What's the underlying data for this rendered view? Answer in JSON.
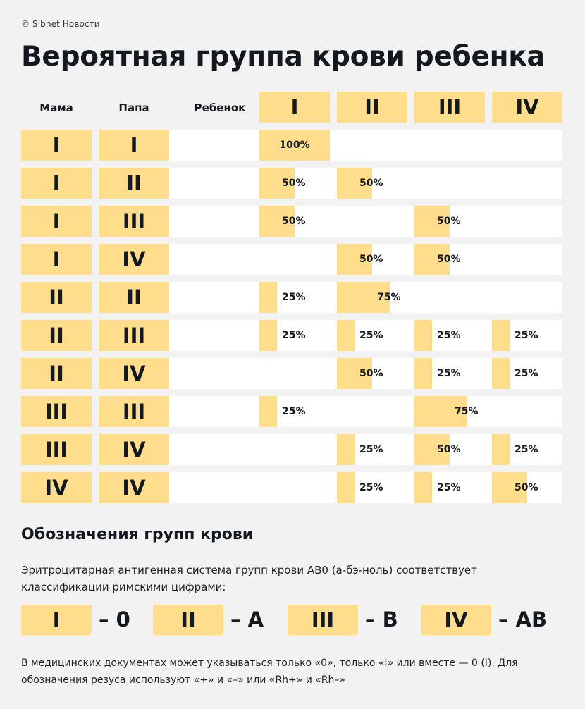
{
  "credit": "© Sibnet Новости",
  "title": "Вероятная группа крови ребенка",
  "headers": {
    "mother": "Мама",
    "father": "Папа",
    "child": "Ребенок"
  },
  "chart_data": {
    "type": "table",
    "title": "Вероятная группа крови ребенка",
    "columns": [
      "Мама",
      "Папа",
      "Ребенок"
    ],
    "child_groups": [
      "I",
      "II",
      "III",
      "IV"
    ],
    "rows": [
      {
        "mother": "I",
        "father": "I",
        "child": [
          100,
          null,
          null,
          null
        ]
      },
      {
        "mother": "I",
        "father": "II",
        "child": [
          50,
          50,
          null,
          null
        ]
      },
      {
        "mother": "I",
        "father": "III",
        "child": [
          50,
          null,
          50,
          null
        ]
      },
      {
        "mother": "I",
        "father": "IV",
        "child": [
          null,
          50,
          50,
          null
        ]
      },
      {
        "mother": "II",
        "father": "II",
        "child": [
          25,
          75,
          null,
          null
        ]
      },
      {
        "mother": "II",
        "father": "III",
        "child": [
          25,
          25,
          25,
          25
        ]
      },
      {
        "mother": "II",
        "father": "IV",
        "child": [
          null,
          50,
          25,
          25
        ]
      },
      {
        "mother": "III",
        "father": "III",
        "child": [
          25,
          null,
          75,
          null
        ]
      },
      {
        "mother": "III",
        "father": "IV",
        "child": [
          null,
          25,
          50,
          25
        ]
      },
      {
        "mother": "IV",
        "father": "IV",
        "child": [
          null,
          25,
          25,
          50
        ]
      }
    ],
    "unit": "%"
  },
  "legend": {
    "title": "Обозначения групп крови",
    "text": "Эритроцитарная антигенная система групп крови AB0 (а-бэ-ноль) соответствует классификации римскими цифрами:",
    "items": [
      {
        "roman": "I",
        "value": "– 0"
      },
      {
        "roman": "II",
        "value": "– A"
      },
      {
        "roman": "III",
        "value": "– B"
      },
      {
        "roman": "IV",
        "value": "– AB"
      }
    ]
  },
  "note": "В медицинских документах может указываться только «0», только «I» или вместе — 0 (I). Для обозначения резуса используют «+» и «–» или «Rh+» и «Rh–»",
  "colors": {
    "accent": "#fedd8c",
    "background": "#f2f2f2",
    "row": "#ffffff",
    "text": "#13191f"
  }
}
